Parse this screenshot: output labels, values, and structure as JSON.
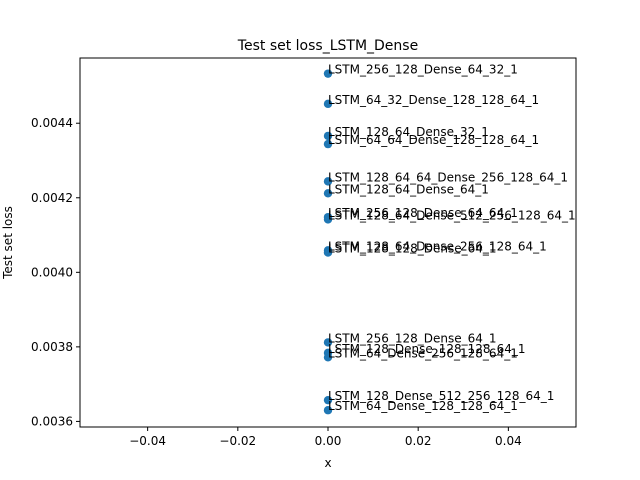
{
  "chart_data": {
    "type": "scatter",
    "title": "Test set loss_LSTM_Dense",
    "xlabel": "x",
    "ylabel": "Test set loss",
    "xlim": [
      -0.055,
      0.055
    ],
    "ylim": [
      0.003585,
      0.004575
    ],
    "xticks": [
      -0.04,
      -0.02,
      0.0,
      0.02,
      0.04
    ],
    "xtick_labels": [
      "−0.04",
      "−0.02",
      "0.00",
      "0.02",
      "0.04"
    ],
    "yticks": [
      0.0036,
      0.0038,
      0.004,
      0.0042,
      0.0044
    ],
    "ytick_labels": [
      "0.0036",
      "0.0038",
      "0.0040",
      "0.0042",
      "0.0044"
    ],
    "grid": false,
    "marker_color": "#1f77b4",
    "points": [
      {
        "x": 0,
        "y": 0.004533,
        "label": "LSTM_256_128_Dense_64_32_1"
      },
      {
        "x": 0,
        "y": 0.004452,
        "label": "LSTM_64_32_Dense_128_128_64_1"
      },
      {
        "x": 0,
        "y": 0.004366,
        "label": "LSTM_128_64_Dense_32_1"
      },
      {
        "x": 0,
        "y": 0.004344,
        "label": "LSTM_64_64_Dense_128_128_64_1"
      },
      {
        "x": 0,
        "y": 0.004244,
        "label": "LSTM_128_64_64_Dense_256_128_64_1"
      },
      {
        "x": 0,
        "y": 0.004212,
        "label": "LSTM_128_64_Dense_64_1"
      },
      {
        "x": 0,
        "y": 0.004148,
        "label": "LSTM_256_128_Dense_64_64_1"
      },
      {
        "x": 0,
        "y": 0.004142,
        "label": "LSTM_128_64_Dense_512_256_128_64_1"
      },
      {
        "x": 0,
        "y": 0.004059,
        "label": "LSTM_128_64_Dense_256_128_64_1"
      },
      {
        "x": 0,
        "y": 0.004053,
        "label": "LSTM_128_128_Dense_64_1"
      },
      {
        "x": 0,
        "y": 0.003812,
        "label": "LSTM_256_128_Dense_64_1"
      },
      {
        "x": 0,
        "y": 0.003784,
        "label": "LSTM_128_Dense_128_128_64_1"
      },
      {
        "x": 0,
        "y": 0.003772,
        "label": "LSTM_64_Dense_256_128_64_1"
      },
      {
        "x": 0,
        "y": 0.003657,
        "label": "LSTM_128_Dense_512_256_128_64_1"
      },
      {
        "x": 0,
        "y": 0.00363,
        "label": "LSTM_64_Dense_128_128_64_1"
      }
    ]
  }
}
